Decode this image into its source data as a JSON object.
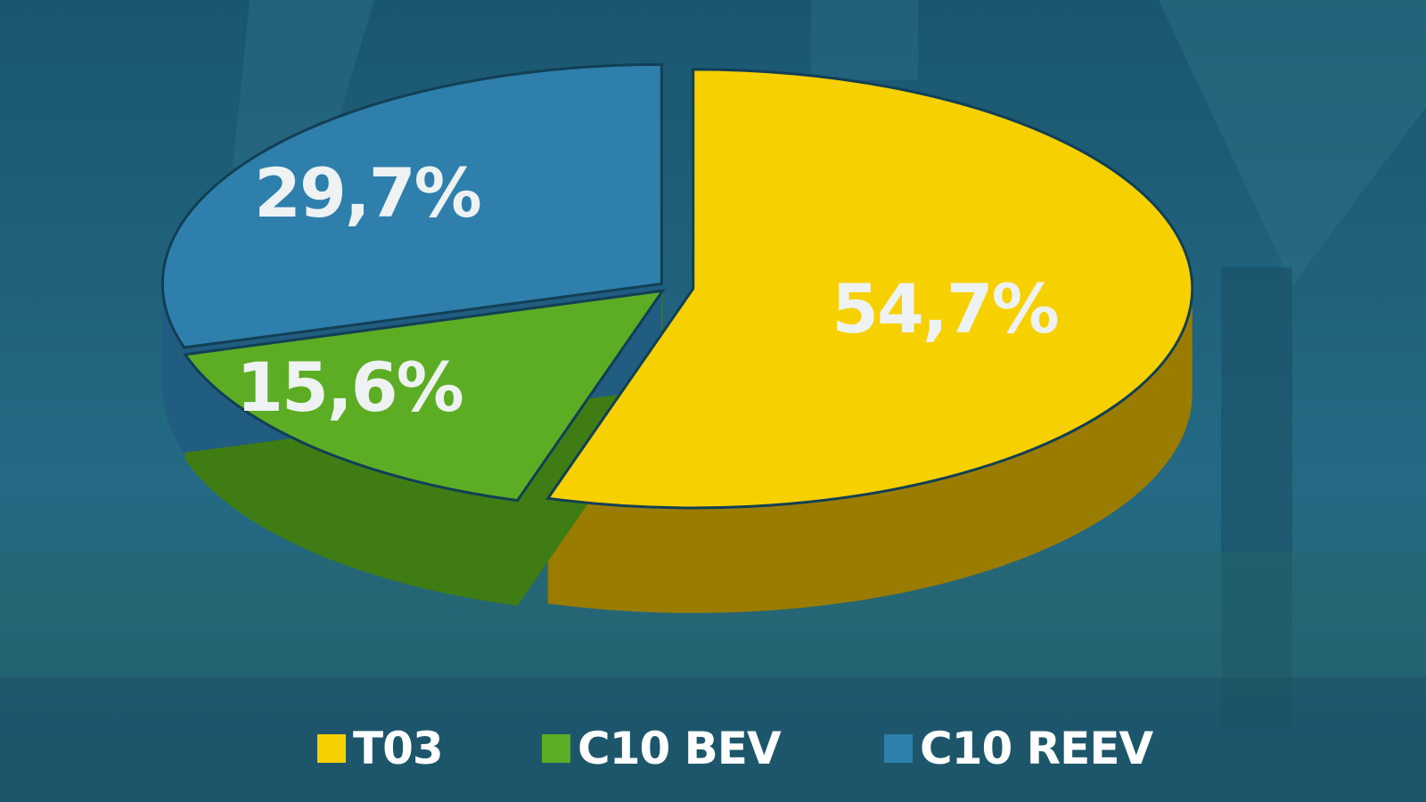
{
  "chart_data": {
    "type": "pie",
    "style": "3d-exploded",
    "slices": [
      {
        "name": "T03",
        "value": 54.7,
        "label": "54,7%",
        "color": "#f7d000",
        "side": "#9a7c00"
      },
      {
        "name": "C10 BEV",
        "value": 15.6,
        "label": "15,6%",
        "color": "#5cad24",
        "side": "#3f7d14"
      },
      {
        "name": "C10 REEV",
        "value": 29.7,
        "label": "29,7%",
        "color": "#2e7fac",
        "side": "#215d80"
      }
    ],
    "legend": {
      "placement": "bottom",
      "items": [
        "T03",
        "C10 BEV",
        "C10 REEV"
      ]
    },
    "background": "#1f5f78"
  }
}
